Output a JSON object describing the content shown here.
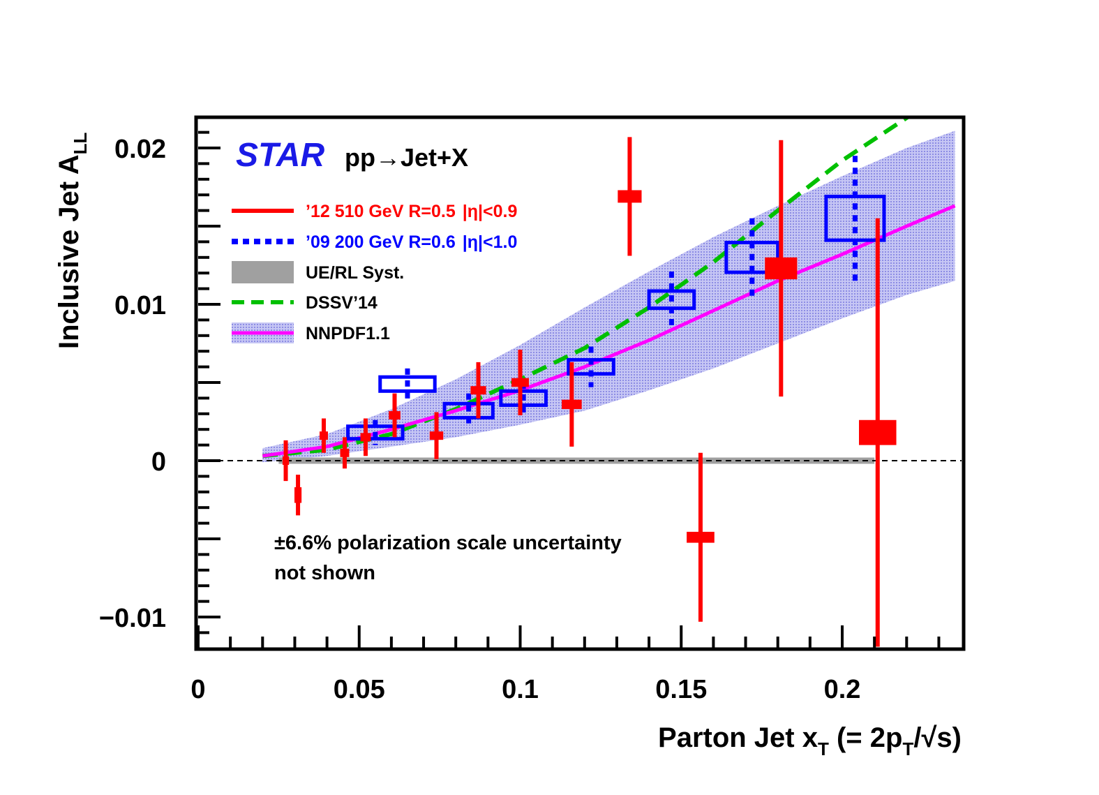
{
  "chart_data": {
    "type": "scatter",
    "title": "",
    "brand": "STAR",
    "process": "pp→Jet+X",
    "xlabel": {
      "main": "Parton Jet x",
      "sub": "T",
      "rest1": " (= 2p",
      "sub2": "T",
      "rest2": "/√s)"
    },
    "ylabel": {
      "main": "Inclusive Jet A",
      "sub": "LL"
    },
    "xlim": [
      0,
      0.24
    ],
    "ylim": [
      -0.0121,
      0.0221
    ],
    "x_ticks": [
      {
        "value": 0,
        "label": "0"
      },
      {
        "value": 0.05,
        "label": "0.05"
      },
      {
        "value": 0.1,
        "label": "0.1"
      },
      {
        "value": 0.15,
        "label": "0.15"
      },
      {
        "value": 0.2,
        "label": "0.2"
      }
    ],
    "y_ticks": [
      {
        "value": -0.01,
        "label": "−0.01"
      },
      {
        "value": 0,
        "label": "0"
      },
      {
        "value": 0.01,
        "label": "0.01"
      },
      {
        "value": 0.02,
        "label": "0.02"
      }
    ],
    "legend_position": "top-left",
    "legend": [
      {
        "label": "’12 510 GeV R=0.5",
        "eta": "|η|<0.9",
        "style": "solid",
        "color": "#ff0000"
      },
      {
        "label": "’09 200 GeV R=0.6",
        "eta": "|η|<1.0",
        "style": "dotted",
        "color": "#0000ff"
      },
      {
        "label": "UE/RL Syst.",
        "eta": "",
        "style": "band",
        "color": "#a0a0a0"
      },
      {
        "label": "DSSV’14",
        "eta": "",
        "style": "dashed",
        "color": "#00c000"
      },
      {
        "label": "NNPDF1.1",
        "eta": "",
        "style": "band-line",
        "color": "#ff00ff"
      }
    ],
    "note": [
      "±6.6% polarization scale uncertainty",
      "not shown"
    ],
    "colors": {
      "run12": "#ff0000",
      "run09": "#0000ff",
      "dssv": "#00c000",
      "nnpdf": "#ff00ff",
      "nnpdf_band": "#a8a8ee",
      "ue_band": "#a0a0a0"
    },
    "series": [
      {
        "name": "’12 510 GeV R=0.5 |η|<0.9",
        "points": [
          {
            "x": 0.0272,
            "y": 0.0,
            "yerr": 0.0013,
            "xsys": 0.001,
            "ysys": 0.00012
          },
          {
            "x": 0.031,
            "y": -0.0022,
            "yerr": 0.0013,
            "xsys": 0.0011,
            "ysys": 0.0005
          },
          {
            "x": 0.039,
            "y": 0.0016,
            "yerr": 0.0011,
            "xsys": 0.0013,
            "ysys": 0.00012
          },
          {
            "x": 0.0455,
            "y": 0.0005,
            "yerr": 0.001,
            "xsys": 0.0014,
            "ysys": 0.00012
          },
          {
            "x": 0.052,
            "y": 0.0015,
            "yerr": 0.0012,
            "xsys": 0.0016,
            "ysys": 0.00015
          },
          {
            "x": 0.061,
            "y": 0.0029,
            "yerr": 0.0014,
            "xsys": 0.0018,
            "ysys": 0.00018
          },
          {
            "x": 0.074,
            "y": 0.0016,
            "yerr": 0.0015,
            "xsys": 0.0021,
            "ysys": 0.0002
          },
          {
            "x": 0.087,
            "y": 0.0045,
            "yerr": 0.0018,
            "xsys": 0.0024,
            "ysys": 0.00025
          },
          {
            "x": 0.1,
            "y": 0.005,
            "yerr": 0.0021,
            "xsys": 0.0027,
            "ysys": 0.00028
          },
          {
            "x": 0.116,
            "y": 0.0036,
            "yerr": 0.0027,
            "xsys": 0.0031,
            "ysys": 0.0003
          },
          {
            "x": 0.134,
            "y": 0.0169,
            "yerr": 0.0038,
            "xsys": 0.0037,
            "ysys": 0.0004
          },
          {
            "x": 0.156,
            "y": -0.0049,
            "yerr": 0.0054,
            "xsys": 0.0043,
            "ysys": 0.00035
          },
          {
            "x": 0.181,
            "y": 0.0123,
            "yerr": 0.0082,
            "xsys": 0.005,
            "ysys": 0.0007
          },
          {
            "x": 0.211,
            "y": 0.0018,
            "yerr": 0.0137,
            "xsys": 0.0058,
            "ysys": 0.0008
          }
        ]
      },
      {
        "name": "’09 200 GeV R=0.6 |η|<1.0",
        "points": [
          {
            "x": 0.055,
            "y": 0.0018,
            "yerr": 0.0008,
            "xsys": 0.0085,
            "ysys": 0.0004
          },
          {
            "x": 0.065,
            "y": 0.0049,
            "yerr": 0.001,
            "xsys": 0.0085,
            "ysys": 0.00045
          },
          {
            "x": 0.084,
            "y": 0.0032,
            "yerr": 0.0011,
            "xsys": 0.0075,
            "ysys": 0.00045
          },
          {
            "x": 0.101,
            "y": 0.004,
            "yerr": 0.001,
            "xsys": 0.007,
            "ysys": 0.00045
          },
          {
            "x": 0.122,
            "y": 0.006,
            "yerr": 0.0013,
            "xsys": 0.007,
            "ysys": 0.00045
          },
          {
            "x": 0.147,
            "y": 0.0103,
            "yerr": 0.0018,
            "xsys": 0.007,
            "ysys": 0.00055
          },
          {
            "x": 0.172,
            "y": 0.013,
            "yerr": 0.0025,
            "xsys": 0.008,
            "ysys": 0.00095
          },
          {
            "x": 0.204,
            "y": 0.0155,
            "yerr": 0.004,
            "xsys": 0.009,
            "ysys": 0.0014
          }
        ]
      }
    ],
    "curves": {
      "dssv": {
        "x": [
          0.02,
          0.04,
          0.06,
          0.08,
          0.1,
          0.12,
          0.14,
          0.16,
          0.18,
          0.2,
          0.222
        ],
        "y": [
          0.0003,
          0.0007,
          0.0017,
          0.0033,
          0.0052,
          0.0072,
          0.0098,
          0.0127,
          0.016,
          0.0192,
          0.0222
        ]
      },
      "nnpdf": {
        "x": [
          0.02,
          0.04,
          0.06,
          0.08,
          0.1,
          0.12,
          0.14,
          0.16,
          0.18,
          0.2,
          0.22,
          0.235
        ],
        "y": [
          0.0003,
          0.0009,
          0.002,
          0.0032,
          0.0045,
          0.006,
          0.0077,
          0.0096,
          0.0115,
          0.0132,
          0.015,
          0.0163
        ]
      },
      "nnpdf_band_upper": [
        0.0008,
        0.0017,
        0.0033,
        0.0052,
        0.0074,
        0.0098,
        0.0121,
        0.0143,
        0.0163,
        0.0182,
        0.02,
        0.0211
      ],
      "nnpdf_band_lower": [
        -0.0001,
        0.0003,
        0.0009,
        0.0015,
        0.0023,
        0.0032,
        0.0045,
        0.0059,
        0.0075,
        0.0091,
        0.0106,
        0.0115
      ],
      "ue_band": {
        "x": [
          0.025,
          0.21
        ],
        "y_low": -0.0002,
        "y_high": 0.0002
      }
    }
  }
}
